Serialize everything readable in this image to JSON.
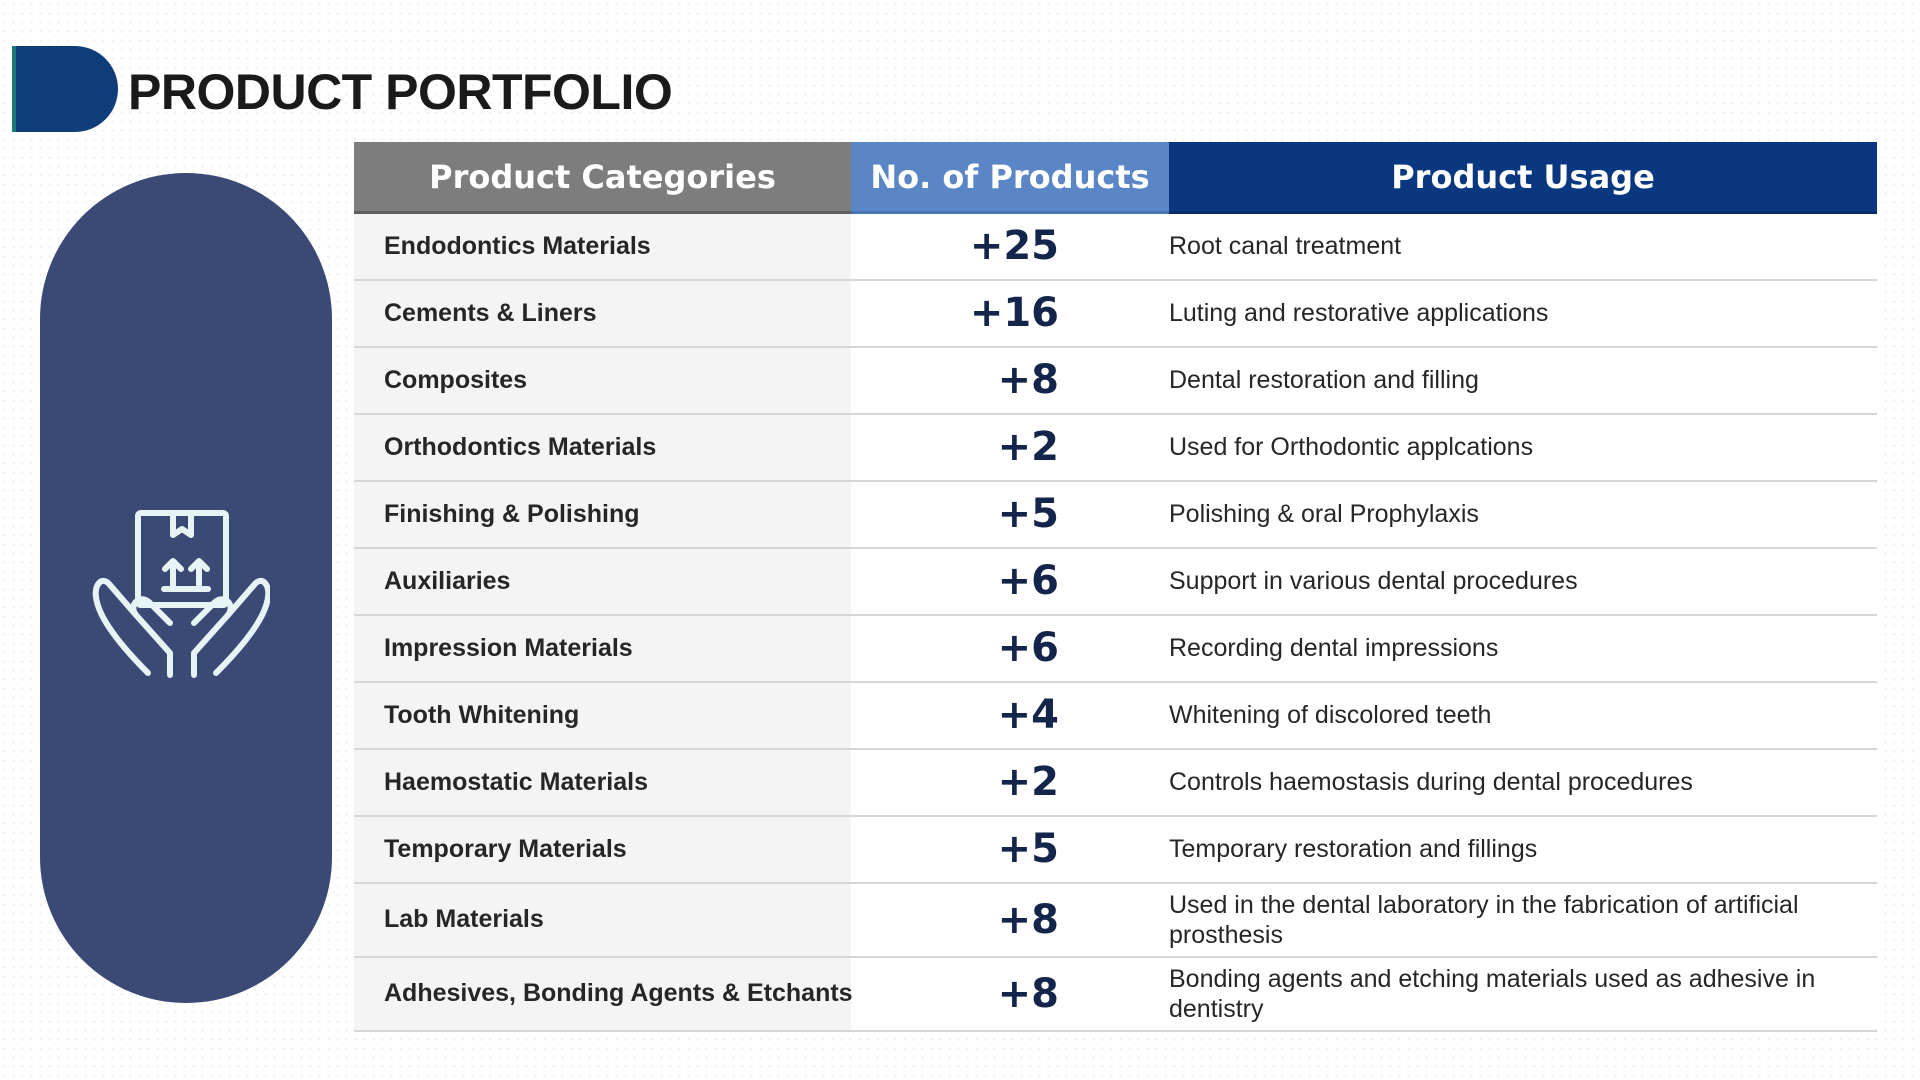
{
  "header": {
    "title": "PRODUCT PORTFOLIO"
  },
  "side_panel": {
    "icon": "hands-holding-box-icon",
    "color": "#3b4a75"
  },
  "table": {
    "headers": {
      "category": "Product Categories",
      "count": "No. of Products",
      "usage": "Product Usage"
    },
    "rows": [
      {
        "category": "Endodontics Materials",
        "count": "+25",
        "usage": "Root canal treatment"
      },
      {
        "category": "Cements & Liners",
        "count": "+16",
        "usage": "Luting and restorative applications"
      },
      {
        "category": "Composites",
        "count": "+8",
        "usage": "Dental restoration and filling"
      },
      {
        "category": "Orthodontics Materials",
        "count": "+2",
        "usage": "Used for Orthodontic applcations"
      },
      {
        "category": "Finishing & Polishing",
        "count": "+5",
        "usage": "Polishing & oral Prophylaxis"
      },
      {
        "category": "Auxiliaries",
        "count": "+6",
        "usage": "Support in various dental procedures"
      },
      {
        "category": "Impression Materials",
        "count": "+6",
        "usage": "Recording dental impressions"
      },
      {
        "category": "Tooth Whitening",
        "count": "+4",
        "usage": "Whitening of discolored teeth"
      },
      {
        "category": "Haemostatic Materials",
        "count": "+2",
        "usage": "Controls haemostasis during dental procedures"
      },
      {
        "category": "Temporary Materials",
        "count": "+5",
        "usage": "Temporary restoration and fillings"
      },
      {
        "category": "Lab Materials",
        "count": "+8",
        "usage": "Used in the dental laboratory in the fabrication of artificial prosthesis"
      },
      {
        "category": "Adhesives, Bonding Agents & Etchants",
        "count": "+8",
        "usage": "Bonding agents and etching materials used as adhesive in dentistry"
      }
    ]
  },
  "colors": {
    "title_accent": "#0e3d7a",
    "header_category": "#7d7d7d",
    "header_count": "#5b86c6",
    "header_usage": "#0a3880"
  }
}
